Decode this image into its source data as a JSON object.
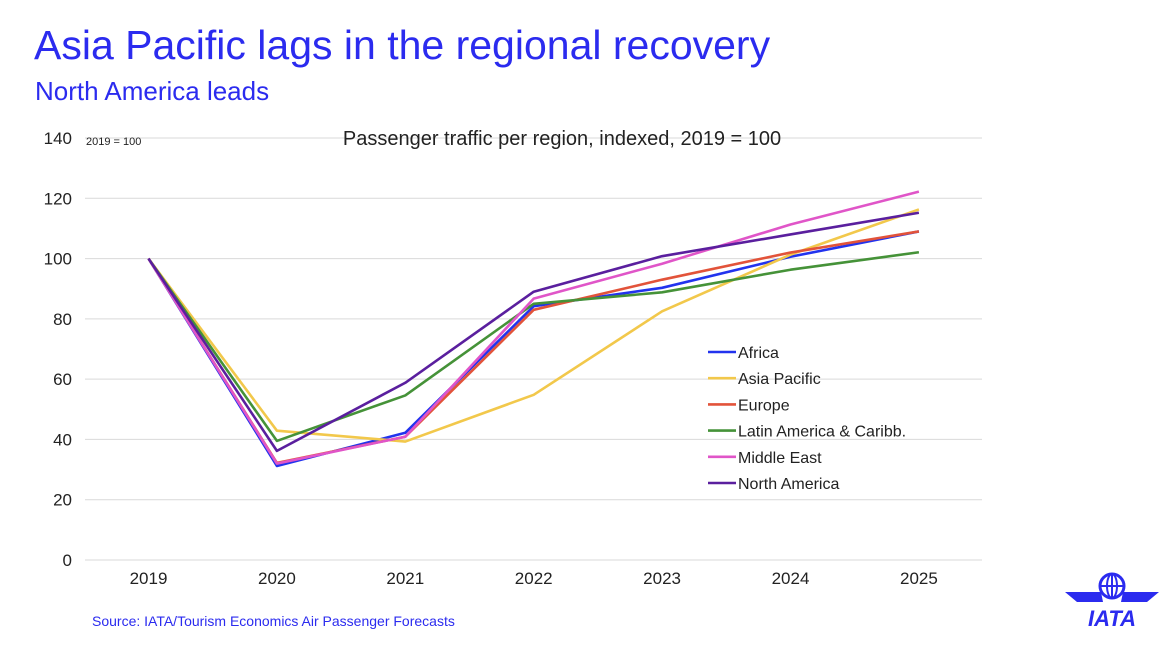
{
  "header": {
    "title": "Asia Pacific lags in the regional recovery",
    "subtitle": "North America leads"
  },
  "source": "Source: IATA/Tourism Economics Air Passenger Forecasts",
  "logo_text": "IATA",
  "chart_data": {
    "type": "line",
    "title": "Passenger traffic per region, indexed, 2019 = 100",
    "ylabel": "2019 = 100",
    "categories": [
      "2019",
      "2020",
      "2021",
      "2022",
      "2023",
      "2024",
      "2025"
    ],
    "ylim": [
      0,
      140
    ],
    "yticks": [
      0,
      20,
      40,
      60,
      80,
      100,
      120,
      140
    ],
    "grid": true,
    "legend_position": "center-right",
    "series": [
      {
        "name": "Africa",
        "color": "#2233ee",
        "values": [
          100,
          31.2,
          42.2,
          84.2,
          90.3,
          100.6,
          109
        ]
      },
      {
        "name": "Asia Pacific",
        "color": "#f2c84b",
        "values": [
          100,
          42.9,
          39.3,
          54.8,
          82.5,
          101.3,
          116.3
        ]
      },
      {
        "name": "Europe",
        "color": "#e2533a",
        "values": [
          100,
          32.2,
          40.9,
          83,
          93,
          102,
          109
        ]
      },
      {
        "name": "Latin America & Caribb.",
        "color": "#459238",
        "values": [
          100,
          39.5,
          54.6,
          85,
          88.8,
          96.3,
          102.1
        ]
      },
      {
        "name": "Middle East",
        "color": "#e055c8",
        "values": [
          100,
          32,
          40.9,
          86.7,
          98.3,
          111.3,
          122.2
        ]
      },
      {
        "name": "North America",
        "color": "#5a1f9e",
        "values": [
          100,
          36.2,
          58.8,
          89,
          100.8,
          108,
          115.2
        ]
      }
    ]
  }
}
